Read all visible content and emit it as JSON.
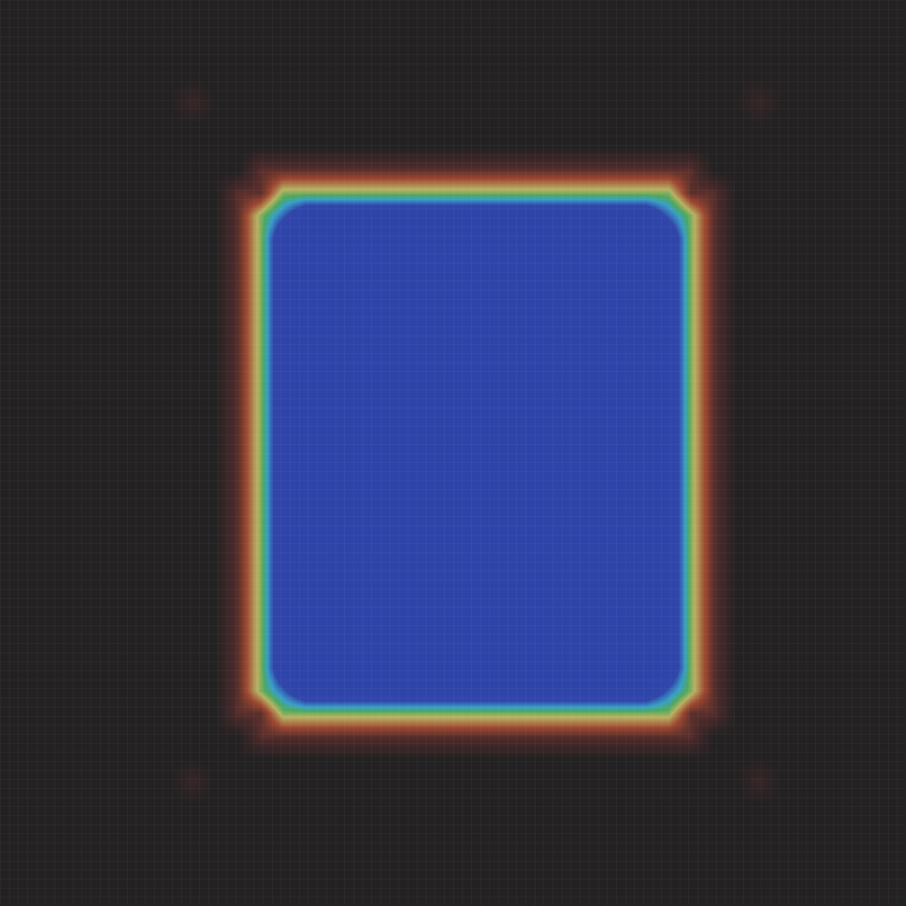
{
  "chart_data": {
    "type": "heatmap",
    "tick_labels": false,
    "zlim": [
      0,
      1
    ],
    "z": [
      [
        1,
        1,
        1,
        1,
        1,
        1,
        1,
        1,
        1,
        1,
        1,
        1,
        1,
        1,
        1,
        1,
        1,
        1,
        1,
        1,
        1,
        1,
        1,
        1,
        1,
        1,
        1,
        1,
        1,
        1,
        1,
        1,
        1,
        1,
        1,
        1,
        1,
        1,
        1,
        1
      ],
      [
        1,
        1,
        1,
        1,
        1,
        1,
        1,
        1,
        1,
        1,
        1,
        1,
        1,
        1,
        1,
        1,
        1,
        1,
        1,
        1,
        1,
        1,
        1,
        1,
        1,
        1,
        1,
        1,
        1,
        1,
        1,
        1,
        1,
        1,
        1,
        1,
        1,
        1,
        1,
        1
      ],
      [
        1,
        1,
        1,
        1,
        1,
        1,
        1,
        1,
        1,
        1,
        1,
        1,
        1,
        1,
        1,
        1,
        1,
        1,
        1,
        1,
        1,
        1,
        1,
        1,
        1,
        1,
        1,
        1,
        1,
        1,
        1,
        1,
        1,
        1,
        1,
        1,
        1,
        1,
        1,
        1
      ],
      [
        1,
        1,
        1,
        1,
        1,
        1,
        1,
        1,
        1,
        1,
        1,
        1,
        1,
        1,
        1,
        1,
        1,
        1,
        1,
        1,
        1,
        1,
        1,
        1,
        1,
        1,
        1,
        1,
        1,
        1,
        1,
        1,
        1,
        1,
        1,
        1,
        1,
        1,
        1,
        1
      ],
      [
        1,
        1,
        1,
        1,
        1,
        1,
        1,
        1,
        0.93,
        1,
        1,
        1,
        1,
        1,
        1,
        1,
        1,
        1,
        1,
        1,
        1,
        1,
        1,
        1,
        1,
        1,
        1,
        1,
        1,
        1,
        1,
        1,
        1,
        0.93,
        1,
        1,
        1,
        1,
        1,
        1
      ],
      [
        1,
        1,
        1,
        1,
        1,
        1,
        1,
        1,
        1,
        1,
        1,
        1,
        1,
        1,
        1,
        1,
        1,
        1,
        1,
        1,
        1,
        1,
        1,
        1,
        1,
        1,
        1,
        1,
        1,
        1,
        1,
        1,
        1,
        1,
        1,
        1,
        1,
        1,
        1,
        1
      ],
      [
        1,
        1,
        1,
        1,
        1,
        1,
        1,
        1,
        1,
        1,
        1,
        1,
        1,
        1,
        1,
        1,
        1,
        1,
        1,
        1,
        1,
        1,
        1,
        1,
        1,
        1,
        1,
        1,
        1,
        1,
        1,
        1,
        1,
        1,
        1,
        1,
        1,
        1,
        1,
        1
      ],
      [
        1,
        1,
        1,
        1,
        1,
        1,
        1,
        1,
        1,
        1,
        1,
        0.85,
        0.85,
        0.85,
        0.85,
        0.85,
        0.85,
        0.85,
        0.85,
        0.85,
        0.85,
        0.85,
        0.85,
        0.85,
        0.85,
        0.85,
        0.85,
        0.85,
        0.85,
        0.85,
        0.85,
        1,
        1,
        1,
        1,
        1,
        1,
        1,
        1,
        1
      ],
      [
        1,
        1,
        1,
        1,
        1,
        1,
        1,
        1,
        1,
        1,
        0.85,
        0.85,
        0.55,
        0.55,
        0.55,
        0.55,
        0.55,
        0.55,
        0.55,
        0.55,
        0.55,
        0.55,
        0.55,
        0.55,
        0.55,
        0.55,
        0.55,
        0.55,
        0.55,
        0.55,
        0.85,
        0.85,
        1,
        1,
        1,
        1,
        1,
        1,
        1,
        1
      ],
      [
        1,
        1,
        1,
        1,
        1,
        1,
        1,
        1,
        1,
        1,
        0.85,
        0.55,
        0.3,
        0,
        0,
        0,
        0,
        0,
        0,
        0,
        0,
        0,
        0,
        0,
        0,
        0,
        0,
        0,
        0,
        0.3,
        0.55,
        0.85,
        1,
        1,
        1,
        1,
        1,
        1,
        1,
        1
      ],
      [
        1,
        1,
        1,
        1,
        1,
        1,
        1,
        1,
        1,
        1,
        0.85,
        0.55,
        0,
        0,
        0,
        0,
        0,
        0,
        0,
        0,
        0,
        0,
        0,
        0,
        0,
        0,
        0,
        0,
        0,
        0,
        0.55,
        0.85,
        1,
        1,
        1,
        1,
        1,
        1,
        1,
        1
      ],
      [
        1,
        1,
        1,
        1,
        1,
        1,
        1,
        1,
        1,
        1,
        0.85,
        0.55,
        0,
        0,
        0,
        0,
        0,
        0,
        0,
        0,
        0,
        0,
        0,
        0,
        0,
        0,
        0,
        0,
        0,
        0,
        0.55,
        0.85,
        1,
        1,
        1,
        1,
        1,
        1,
        1,
        1
      ],
      [
        1,
        1,
        1,
        1,
        1,
        1,
        1,
        1,
        1,
        1,
        0.85,
        0.55,
        0,
        0,
        0,
        0,
        0,
        0,
        0,
        0,
        0,
        0,
        0,
        0,
        0,
        0,
        0,
        0,
        0,
        0,
        0.55,
        0.85,
        1,
        1,
        1,
        1,
        1,
        1,
        1,
        1
      ],
      [
        1,
        1,
        1,
        1,
        1,
        1,
        1,
        1,
        1,
        1,
        0.85,
        0.55,
        0,
        0,
        0,
        0,
        0,
        0,
        0,
        0,
        0,
        0,
        0,
        0,
        0,
        0,
        0,
        0,
        0,
        0,
        0.55,
        0.85,
        1,
        1,
        1,
        1,
        1,
        1,
        1,
        1
      ],
      [
        1,
        1,
        1,
        1,
        1,
        1,
        1,
        1,
        1,
        1,
        0.85,
        0.55,
        0,
        0,
        0,
        0,
        0,
        0,
        0,
        0,
        0,
        0,
        0,
        0,
        0,
        0,
        0,
        0,
        0,
        0,
        0.55,
        0.85,
        1,
        1,
        1,
        1,
        1,
        1,
        1,
        1
      ],
      [
        1,
        1,
        1,
        1,
        1,
        1,
        1,
        1,
        1,
        1,
        0.85,
        0.55,
        0,
        0,
        0,
        0,
        0,
        0,
        0,
        0,
        0,
        0,
        0,
        0,
        0,
        0,
        0,
        0,
        0,
        0,
        0.55,
        0.85,
        1,
        1,
        1,
        1,
        1,
        1,
        1,
        1
      ],
      [
        1,
        1,
        1,
        1,
        1,
        1,
        1,
        1,
        1,
        1,
        0.85,
        0.55,
        0,
        0,
        0,
        0,
        0,
        0,
        0,
        0,
        0,
        0,
        0,
        0,
        0,
        0,
        0,
        0,
        0,
        0,
        0.55,
        0.85,
        1,
        1,
        1,
        1,
        1,
        1,
        1,
        1
      ],
      [
        1,
        1,
        1,
        1,
        1,
        1,
        1,
        1,
        1,
        1,
        0.85,
        0.55,
        0,
        0,
        0,
        0,
        0,
        0,
        0,
        0,
        0,
        0,
        0,
        0,
        0,
        0,
        0,
        0,
        0,
        0,
        0.55,
        0.85,
        1,
        1,
        1,
        1,
        1,
        1,
        1,
        1
      ],
      [
        1,
        1,
        1,
        1,
        1,
        1,
        1,
        1,
        1,
        1,
        0.85,
        0.55,
        0,
        0,
        0,
        0,
        0,
        0,
        0,
        0,
        0,
        0,
        0,
        0,
        0,
        0,
        0,
        0,
        0,
        0,
        0.55,
        0.85,
        1,
        1,
        1,
        1,
        1,
        1,
        1,
        1
      ],
      [
        1,
        1,
        1,
        1,
        1,
        1,
        1,
        1,
        1,
        1,
        0.85,
        0.55,
        0,
        0,
        0,
        0,
        0,
        0,
        0,
        0,
        0,
        0,
        0,
        0,
        0,
        0,
        0,
        0,
        0,
        0,
        0.55,
        0.85,
        1,
        1,
        1,
        1,
        1,
        1,
        1,
        1
      ],
      [
        1,
        1,
        1,
        1,
        1,
        1,
        1,
        1,
        1,
        1,
        0.85,
        0.55,
        0,
        0,
        0,
        0,
        0,
        0,
        0,
        0,
        0,
        0,
        0,
        0,
        0,
        0,
        0,
        0,
        0,
        0,
        0.55,
        0.85,
        1,
        1,
        1,
        1,
        1,
        1,
        1,
        1
      ],
      [
        1,
        1,
        1,
        1,
        1,
        1,
        1,
        1,
        1,
        1,
        0.85,
        0.55,
        0,
        0,
        0,
        0,
        0,
        0,
        0,
        0,
        0,
        0,
        0,
        0,
        0,
        0,
        0,
        0,
        0,
        0,
        0.55,
        0.85,
        1,
        1,
        1,
        1,
        1,
        1,
        1,
        1
      ],
      [
        1,
        1,
        1,
        1,
        1,
        1,
        1,
        1,
        1,
        1,
        0.85,
        0.55,
        0,
        0,
        0,
        0,
        0,
        0,
        0,
        0,
        0,
        0,
        0,
        0,
        0,
        0,
        0,
        0,
        0,
        0,
        0.55,
        0.85,
        1,
        1,
        1,
        1,
        1,
        1,
        1,
        1
      ],
      [
        1,
        1,
        1,
        1,
        1,
        1,
        1,
        1,
        1,
        1,
        0.85,
        0.55,
        0,
        0,
        0,
        0,
        0,
        0,
        0,
        0,
        0,
        0,
        0,
        0,
        0,
        0,
        0,
        0,
        0,
        0,
        0.55,
        0.85,
        1,
        1,
        1,
        1,
        1,
        1,
        1,
        1
      ],
      [
        1,
        1,
        1,
        1,
        1,
        1,
        1,
        1,
        1,
        1,
        0.85,
        0.55,
        0,
        0,
        0,
        0,
        0,
        0,
        0,
        0,
        0,
        0,
        0,
        0,
        0,
        0,
        0,
        0,
        0,
        0,
        0.55,
        0.85,
        1,
        1,
        1,
        1,
        1,
        1,
        1,
        1
      ],
      [
        1,
        1,
        1,
        1,
        1,
        1,
        1,
        1,
        1,
        1,
        0.85,
        0.55,
        0,
        0,
        0,
        0,
        0,
        0,
        0,
        0,
        0,
        0,
        0,
        0,
        0,
        0,
        0,
        0,
        0,
        0,
        0.55,
        0.85,
        1,
        1,
        1,
        1,
        1,
        1,
        1,
        1
      ],
      [
        1,
        1,
        1,
        1,
        1,
        1,
        1,
        1,
        1,
        1,
        0.85,
        0.55,
        0,
        0,
        0,
        0,
        0,
        0,
        0,
        0,
        0,
        0,
        0,
        0,
        0,
        0,
        0,
        0,
        0,
        0,
        0.55,
        0.85,
        1,
        1,
        1,
        1,
        1,
        1,
        1,
        1
      ],
      [
        1,
        1,
        1,
        1,
        1,
        1,
        1,
        1,
        1,
        1,
        0.85,
        0.55,
        0,
        0,
        0,
        0,
        0,
        0,
        0,
        0,
        0,
        0,
        0,
        0,
        0,
        0,
        0,
        0,
        0,
        0,
        0.55,
        0.85,
        1,
        1,
        1,
        1,
        1,
        1,
        1,
        1
      ],
      [
        1,
        1,
        1,
        1,
        1,
        1,
        1,
        1,
        1,
        1,
        0.85,
        0.55,
        0,
        0,
        0,
        0,
        0,
        0,
        0,
        0,
        0,
        0,
        0,
        0,
        0,
        0,
        0,
        0,
        0,
        0,
        0.55,
        0.85,
        1,
        1,
        1,
        1,
        1,
        1,
        1,
        1
      ],
      [
        1,
        1,
        1,
        1,
        1,
        1,
        1,
        1,
        1,
        1,
        0.85,
        0.55,
        0,
        0,
        0,
        0,
        0,
        0,
        0,
        0,
        0,
        0,
        0,
        0,
        0,
        0,
        0,
        0,
        0,
        0,
        0.55,
        0.85,
        1,
        1,
        1,
        1,
        1,
        1,
        1,
        1
      ],
      [
        1,
        1,
        1,
        1,
        1,
        1,
        1,
        1,
        1,
        1,
        0.85,
        0.55,
        0.3,
        0,
        0,
        0,
        0,
        0,
        0,
        0,
        0,
        0,
        0,
        0,
        0,
        0,
        0,
        0,
        0,
        0.3,
        0.55,
        0.85,
        1,
        1,
        1,
        1,
        1,
        1,
        1,
        1
      ],
      [
        1,
        1,
        1,
        1,
        1,
        1,
        1,
        1,
        1,
        1,
        0.85,
        0.85,
        0.55,
        0.55,
        0.55,
        0.55,
        0.55,
        0.55,
        0.55,
        0.55,
        0.55,
        0.55,
        0.55,
        0.55,
        0.55,
        0.55,
        0.55,
        0.55,
        0.55,
        0.55,
        0.85,
        0.85,
        1,
        1,
        1,
        1,
        1,
        1,
        1,
        1
      ],
      [
        1,
        1,
        1,
        1,
        1,
        1,
        1,
        1,
        1,
        1,
        1,
        0.85,
        0.85,
        0.85,
        0.85,
        0.85,
        0.85,
        0.85,
        0.85,
        0.85,
        0.85,
        0.85,
        0.85,
        0.85,
        0.85,
        0.85,
        0.85,
        0.85,
        0.85,
        0.85,
        0.85,
        1,
        1,
        1,
        1,
        1,
        1,
        1,
        1,
        1
      ],
      [
        1,
        1,
        1,
        1,
        1,
        1,
        1,
        1,
        1,
        1,
        1,
        1,
        1,
        1,
        1,
        1,
        1,
        1,
        1,
        1,
        1,
        1,
        1,
        1,
        1,
        1,
        1,
        1,
        1,
        1,
        1,
        1,
        1,
        1,
        1,
        1,
        1,
        1,
        1,
        1
      ],
      [
        1,
        1,
        1,
        1,
        1,
        1,
        1,
        1,
        0.93,
        1,
        1,
        1,
        1,
        1,
        1,
        1,
        1,
        1,
        1,
        1,
        1,
        1,
        1,
        1,
        1,
        1,
        1,
        1,
        1,
        1,
        1,
        1,
        1,
        0.93,
        1,
        1,
        1,
        1,
        1,
        1
      ],
      [
        1,
        1,
        1,
        1,
        1,
        1,
        1,
        1,
        1,
        1,
        1,
        1,
        1,
        1,
        1,
        1,
        1,
        1,
        1,
        1,
        1,
        1,
        1,
        1,
        1,
        1,
        1,
        1,
        1,
        1,
        1,
        1,
        1,
        1,
        1,
        1,
        1,
        1,
        1,
        1
      ],
      [
        1,
        1,
        1,
        1,
        1,
        1,
        1,
        1,
        1,
        1,
        1,
        1,
        1,
        1,
        1,
        1,
        1,
        1,
        1,
        1,
        1,
        1,
        1,
        1,
        1,
        1,
        1,
        1,
        1,
        1,
        1,
        1,
        1,
        1,
        1,
        1,
        1,
        1,
        1,
        1
      ],
      [
        1,
        1,
        1,
        1,
        1,
        1,
        1,
        1,
        1,
        1,
        1,
        1,
        1,
        1,
        1,
        1,
        1,
        1,
        1,
        1,
        1,
        1,
        1,
        1,
        1,
        1,
        1,
        1,
        1,
        1,
        1,
        1,
        1,
        1,
        1,
        1,
        1,
        1,
        1,
        1
      ],
      [
        1,
        1,
        1,
        1,
        1,
        1,
        1,
        1,
        1,
        1,
        1,
        1,
        1,
        1,
        1,
        1,
        1,
        1,
        1,
        1,
        1,
        1,
        1,
        1,
        1,
        1,
        1,
        1,
        1,
        1,
        1,
        1,
        1,
        1,
        1,
        1,
        1,
        1,
        1,
        1
      ],
      [
        1,
        1,
        1,
        1,
        1,
        1,
        1,
        1,
        1,
        1,
        1,
        1,
        1,
        1,
        1,
        1,
        1,
        1,
        1,
        1,
        1,
        1,
        1,
        1,
        1,
        1,
        1,
        1,
        1,
        1,
        1,
        1,
        1,
        1,
        1,
        1,
        1,
        1,
        1,
        1
      ]
    ]
  }
}
